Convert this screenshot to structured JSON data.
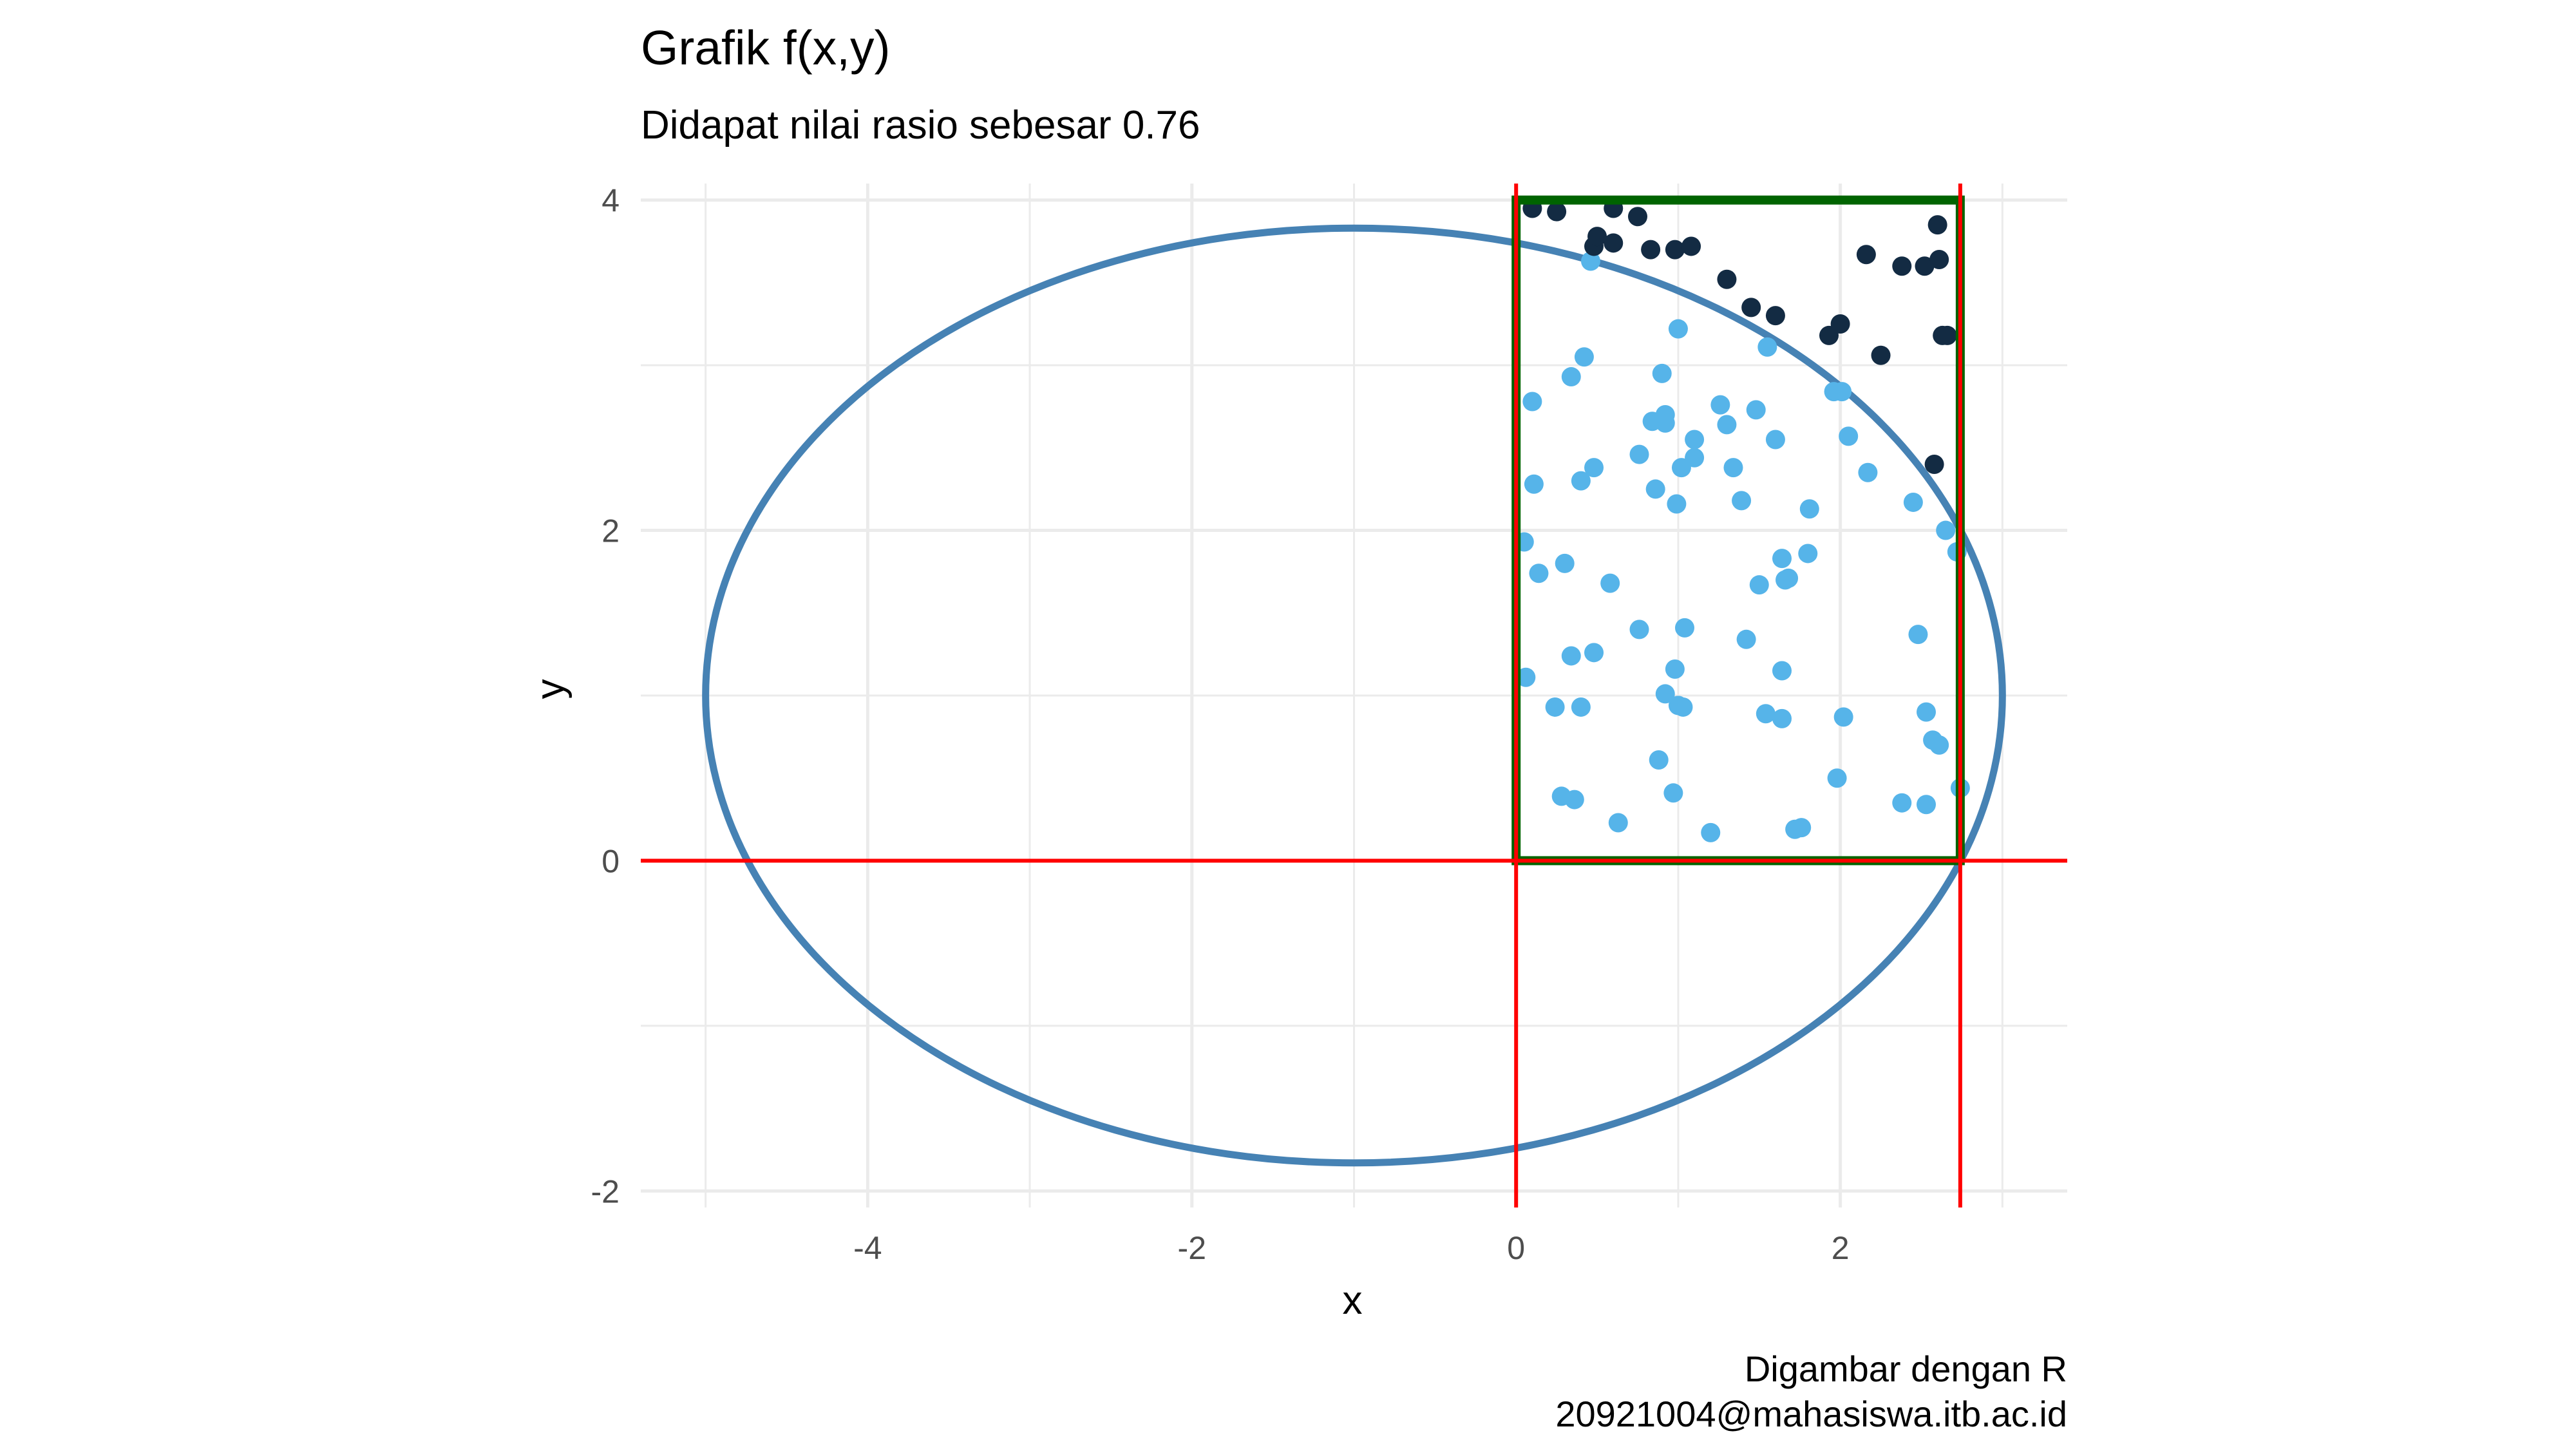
{
  "chart_data": {
    "type": "scatter",
    "title": "Grafik f(x,y)",
    "subtitle": "Didapat nilai rasio sebesar 0.76",
    "xlabel": "x",
    "ylabel": "y",
    "caption": [
      "Digambar dengan R",
      "20921004@mahasiswa.itb.ac.id"
    ],
    "xlim": [
      -5.4,
      3.4
    ],
    "ylim": [
      -2.1,
      4.1
    ],
    "x_ticks": [
      {
        "value": -4,
        "label": "-4"
      },
      {
        "value": -2,
        "label": "-2"
      },
      {
        "value": 0,
        "label": "0"
      },
      {
        "value": 2,
        "label": "2"
      }
    ],
    "y_ticks": [
      {
        "value": -2,
        "label": "-2"
      },
      {
        "value": 0,
        "label": "0"
      },
      {
        "value": 2,
        "label": "2"
      },
      {
        "value": 4,
        "label": "4"
      }
    ],
    "grid": true,
    "legend": "none",
    "colors": {
      "ellipse": "#4682b4",
      "rectangle": "#006400",
      "reference_lines": "#ff0000",
      "points_inside": "#56b4e9",
      "points_outside": "#132b43",
      "grid": "#ebebeb"
    },
    "ellipse": {
      "center": [
        -1,
        1
      ],
      "radius_x": 4,
      "radius_y": 2.83
    },
    "rectangle": {
      "x": [
        0,
        2.74
      ],
      "y": [
        0,
        4
      ]
    },
    "reference_lines": {
      "horizontal": [
        0
      ],
      "vertical": [
        0,
        2.74
      ]
    },
    "points_outside": [
      [
        0.1,
        3.95
      ],
      [
        0.25,
        3.93
      ],
      [
        0.48,
        3.72
      ],
      [
        0.5,
        3.78
      ],
      [
        0.6,
        3.74
      ],
      [
        0.6,
        3.95
      ],
      [
        0.75,
        3.9
      ],
      [
        0.83,
        3.7
      ],
      [
        0.98,
        3.7
      ],
      [
        1.08,
        3.72
      ],
      [
        1.3,
        3.52
      ],
      [
        1.45,
        3.35
      ],
      [
        1.6,
        3.3
      ],
      [
        1.93,
        3.18
      ],
      [
        2.0,
        3.25
      ],
      [
        2.16,
        3.67
      ],
      [
        2.25,
        3.06
      ],
      [
        2.38,
        3.6
      ],
      [
        2.52,
        3.6
      ],
      [
        2.58,
        2.4
      ],
      [
        2.6,
        3.85
      ],
      [
        2.61,
        3.64
      ],
      [
        2.63,
        3.18
      ],
      [
        2.66,
        3.18
      ]
    ],
    "points_inside": [
      [
        0.46,
        3.63
      ],
      [
        0.42,
        3.05
      ],
      [
        0.34,
        2.93
      ],
      [
        0.1,
        2.78
      ],
      [
        0.11,
        2.28
      ],
      [
        0.4,
        2.3
      ],
      [
        0.48,
        2.38
      ],
      [
        0.05,
        1.93
      ],
      [
        0.14,
        1.74
      ],
      [
        0.3,
        1.8
      ],
      [
        0.58,
        1.68
      ],
      [
        0.06,
        1.11
      ],
      [
        0.34,
        1.24
      ],
      [
        0.48,
        1.26
      ],
      [
        0.24,
        0.93
      ],
      [
        0.4,
        0.93
      ],
      [
        0.76,
        1.4
      ],
      [
        1.04,
        1.41
      ],
      [
        0.98,
        1.16
      ],
      [
        0.92,
        1.01
      ],
      [
        1.0,
        0.94
      ],
      [
        1.03,
        0.93
      ],
      [
        0.88,
        0.61
      ],
      [
        0.28,
        0.39
      ],
      [
        0.36,
        0.37
      ],
      [
        0.63,
        0.23
      ],
      [
        0.97,
        0.41
      ],
      [
        1.2,
        0.17
      ],
      [
        1.0,
        3.22
      ],
      [
        0.9,
        2.95
      ],
      [
        0.84,
        2.66
      ],
      [
        0.92,
        2.7
      ],
      [
        0.92,
        2.65
      ],
      [
        1.1,
        2.55
      ],
      [
        0.76,
        2.46
      ],
      [
        1.02,
        2.38
      ],
      [
        1.1,
        2.44
      ],
      [
        0.86,
        2.25
      ],
      [
        0.99,
        2.16
      ],
      [
        1.26,
        2.76
      ],
      [
        1.3,
        2.64
      ],
      [
        1.34,
        2.38
      ],
      [
        1.39,
        2.18
      ],
      [
        1.48,
        2.73
      ],
      [
        1.55,
        3.11
      ],
      [
        1.6,
        2.55
      ],
      [
        1.5,
        1.67
      ],
      [
        1.64,
        1.83
      ],
      [
        1.66,
        1.7
      ],
      [
        1.68,
        1.71
      ],
      [
        1.81,
        2.13
      ],
      [
        1.8,
        1.86
      ],
      [
        1.96,
        2.84
      ],
      [
        2.01,
        2.84
      ],
      [
        2.05,
        2.57
      ],
      [
        2.17,
        2.35
      ],
      [
        1.42,
        1.34
      ],
      [
        1.64,
        1.15
      ],
      [
        1.54,
        0.89
      ],
      [
        1.64,
        0.86
      ],
      [
        2.02,
        0.87
      ],
      [
        2.45,
        2.17
      ],
      [
        2.65,
        2.0
      ],
      [
        2.72,
        1.87
      ],
      [
        2.48,
        1.37
      ],
      [
        2.53,
        0.9
      ],
      [
        2.57,
        0.73
      ],
      [
        2.61,
        0.7
      ],
      [
        1.98,
        0.5
      ],
      [
        2.74,
        0.44
      ],
      [
        1.72,
        0.19
      ],
      [
        1.76,
        0.2
      ],
      [
        2.38,
        0.35
      ],
      [
        2.53,
        0.34
      ]
    ]
  }
}
